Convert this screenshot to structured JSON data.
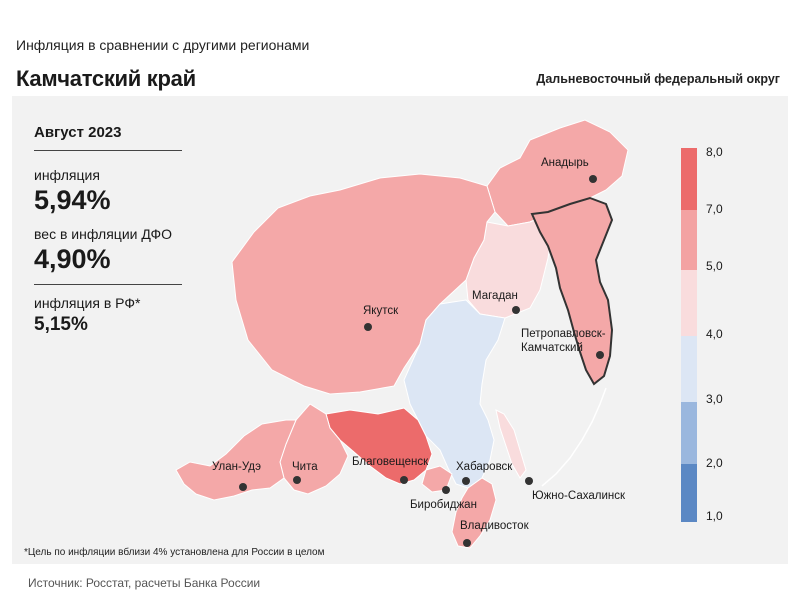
{
  "header": {
    "subtitle": "Инфляция  в сравнении  с другими  регионами",
    "title": "Камчатский край",
    "district": "Дальневосточный федеральный округ"
  },
  "info": {
    "period": "Август 2023",
    "inflation_label": "инфляция",
    "inflation_value": "5,94%",
    "weight_label": "вес в инфляции  ДФО",
    "weight_value": "4,90%",
    "rf_label": "инфляция  в РФ*",
    "rf_value": "5,15%"
  },
  "footnote": "*Цель по инфляции  вблизи  4%  установлена  для  России  в  целом",
  "source": "Источник: Росстат, расчеты Банка  России",
  "legend": {
    "ticks": [
      "8,0",
      "7,0",
      "5,0",
      "4,0",
      "3,0",
      "2,0",
      "1,0"
    ],
    "colors": [
      "#ec6b6b",
      "#f3a2a2",
      "#f9dcdd",
      "#dce6f4",
      "#9ab7de",
      "#5b88c4"
    ]
  },
  "cities": [
    {
      "name": "Анадырь"
    },
    {
      "name": "Якутск"
    },
    {
      "name": "Магадан"
    },
    {
      "name": "Петропавловск-"
    },
    {
      "name": "Камчатский"
    },
    {
      "name": "Улан-Удэ"
    },
    {
      "name": "Чита"
    },
    {
      "name": "Благовещенск"
    },
    {
      "name": "Хабаровск"
    },
    {
      "name": "Биробиджан"
    },
    {
      "name": "Южно-Сахалинск"
    },
    {
      "name": "Владивосток"
    }
  ],
  "region_colors": {
    "pink": "#f4a8a8",
    "red": "#ec6b6b",
    "light_pink": "#f9dcdd",
    "light_blue": "#dce6f4",
    "highlight_border": "#333333"
  }
}
